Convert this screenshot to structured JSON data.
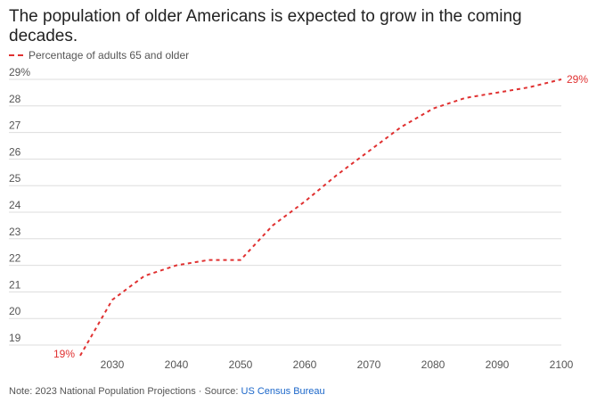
{
  "title": "The population of older Americans is expected to grow in the coming decades.",
  "legend_label": "Percentage of adults 65 and older",
  "colors": {
    "series": "#e03131",
    "grid": "#dddddd",
    "text": "#555555",
    "link": "#1a66c9"
  },
  "footer": {
    "note": "Note: 2023 National Population Projections · Source: ",
    "source_link": "US Census Bureau"
  },
  "chart_data": {
    "type": "line",
    "title": "The population of older Americans is expected to grow in the coming decades.",
    "xlabel": "",
    "ylabel": "",
    "xlim": [
      2025,
      2100
    ],
    "ylim": [
      19,
      29
    ],
    "x_ticks": [
      2030,
      2040,
      2050,
      2060,
      2070,
      2080,
      2090,
      2100
    ],
    "y_ticks": [
      "19",
      "20",
      "21",
      "22",
      "23",
      "24",
      "25",
      "26",
      "27",
      "28",
      "29%"
    ],
    "y_tick_values": [
      19,
      20,
      21,
      22,
      23,
      24,
      25,
      26,
      27,
      28,
      29
    ],
    "grid": true,
    "legend_position": "top-left",
    "series": [
      {
        "name": "Percentage of adults 65 and older",
        "style": "dashed",
        "x": [
          2025,
          2030,
          2035,
          2040,
          2045,
          2050,
          2055,
          2060,
          2065,
          2070,
          2075,
          2080,
          2085,
          2090,
          2095,
          2100
        ],
        "y": [
          18.6,
          20.7,
          21.6,
          22.0,
          22.2,
          22.2,
          23.5,
          24.4,
          25.4,
          26.3,
          27.2,
          27.9,
          28.3,
          28.5,
          28.7,
          29.0
        ]
      }
    ],
    "annotations": [
      {
        "x": 2025,
        "y": 18.6,
        "text": "19%"
      },
      {
        "x": 2100,
        "y": 29.0,
        "text": "29%"
      }
    ]
  }
}
